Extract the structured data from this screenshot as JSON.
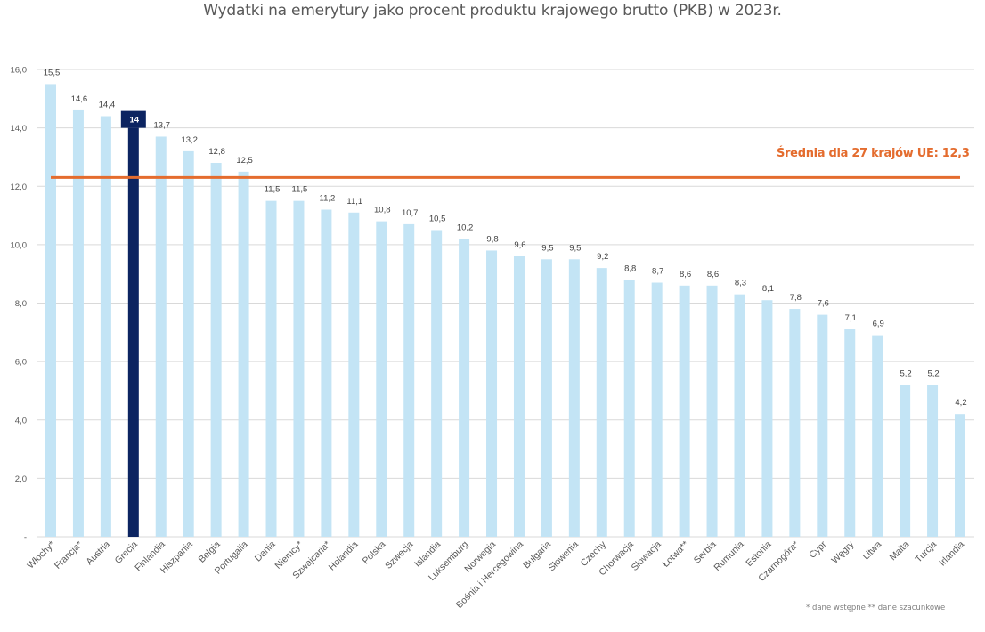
{
  "chart_data": {
    "type": "bar",
    "title": "Wydatki na emerytury jako procent produktu krajowego brutto (PKB) w 2023r.",
    "xlabel": "",
    "ylabel": "",
    "ylim": [
      0,
      16
    ],
    "yticks": [
      0,
      2,
      4,
      6,
      8,
      10,
      12,
      14,
      16
    ],
    "ytick_labels": [
      "-",
      "2,0",
      "4,0",
      "6,0",
      "8,0",
      "10,0",
      "12,0",
      "14,0",
      "16,0"
    ],
    "grid": true,
    "categories": [
      "Włochy*",
      "Francja*",
      "Austria",
      "Grecja",
      "Finlandia",
      "Hiszpania",
      "Belgia",
      "Portugalia",
      "Dania",
      "Niemcy*",
      "Szwajcaria*",
      "Holandia",
      "Polska",
      "Szwecja",
      "Islandia",
      "Luksemburg",
      "Norwegia",
      "Bośnia i Hercegowina",
      "Bułgaria",
      "Słowenia",
      "Czechy",
      "Chorwacja",
      "Słowacja",
      "Łotwa**",
      "Serbia",
      "Rumunia",
      "Estonia",
      "Czarnogóra*",
      "Cypr",
      "Węgry",
      "Litwa",
      "Malta",
      "Turcja",
      "Irlandia"
    ],
    "values": [
      15.5,
      14.6,
      14.4,
      14,
      13.7,
      13.2,
      12.8,
      12.5,
      11.5,
      11.5,
      11.2,
      11.1,
      10.8,
      10.7,
      10.5,
      10.2,
      9.8,
      9.6,
      9.5,
      9.5,
      9.2,
      8.8,
      8.7,
      8.6,
      8.6,
      8.3,
      8.1,
      7.8,
      7.6,
      7.1,
      6.9,
      5.2,
      5.2,
      4.2
    ],
    "value_labels": [
      "15,5",
      "14,6",
      "14,4",
      "14",
      "13,7",
      "13,2",
      "12,8",
      "12,5",
      "11,5",
      "11,5",
      "11,2",
      "11,1",
      "10,8",
      "10,7",
      "10,5",
      "10,2",
      "9,8",
      "9,6",
      "9,5",
      "9,5",
      "9,2",
      "8,8",
      "8,7",
      "8,6",
      "8,6",
      "8,3",
      "8,1",
      "7,8",
      "7,6",
      "7,1",
      "6,9",
      "5,2",
      "5,2",
      "4,2"
    ],
    "highlight_index": 3,
    "reference_line": {
      "label": "Średnia dla 27 krajów UE: 12,3",
      "value": 12.3
    },
    "legend": "none",
    "colors": {
      "bar": "#c3e4f5",
      "highlight": "#0c2461",
      "average_line": "#e46c2e",
      "grid": "#d9d9d9",
      "axis_text": "#595959"
    }
  },
  "footnote": "* dane wstępne   ** dane szacunkowe"
}
